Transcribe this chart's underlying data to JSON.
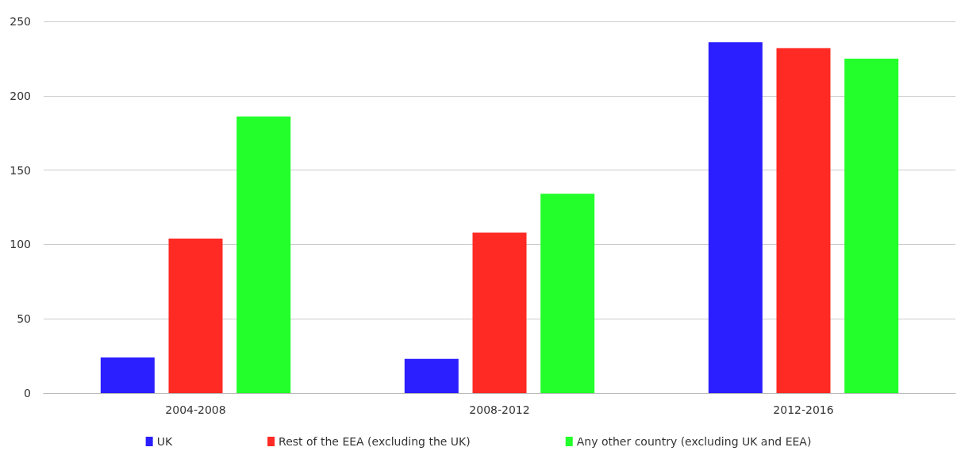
{
  "chart_data": {
    "type": "bar",
    "categories": [
      "2004-2008",
      "2008-2012",
      "2012-2016"
    ],
    "series": [
      {
        "name": "UK",
        "color": "#2b1fff",
        "values": [
          24,
          23,
          236
        ]
      },
      {
        "name": "Rest of the EEA (excluding the UK)",
        "color": "#ff2a24",
        "values": [
          104,
          108,
          232
        ]
      },
      {
        "name": "Any other country (excluding UK and EEA)",
        "color": "#22ff2a",
        "values": [
          186,
          134,
          225
        ]
      }
    ],
    "ylim": [
      0,
      250
    ],
    "yticks": [
      0,
      50,
      100,
      150,
      200,
      250
    ],
    "grid": "y",
    "legend": "bottom"
  }
}
